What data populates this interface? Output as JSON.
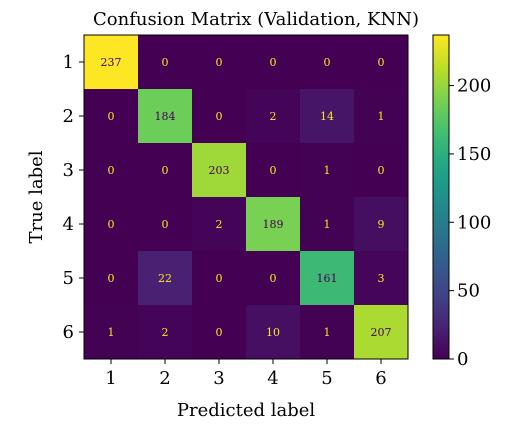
{
  "chart_data": {
    "type": "heatmap",
    "title": "Confusion Matrix (Validation, KNN)",
    "xlabel": "Predicted label",
    "ylabel": "True label",
    "x_categories": [
      "1",
      "2",
      "3",
      "4",
      "5",
      "6"
    ],
    "y_categories": [
      "1",
      "2",
      "3",
      "4",
      "5",
      "6"
    ],
    "values": [
      [
        237,
        0,
        0,
        0,
        0,
        0
      ],
      [
        0,
        184,
        0,
        2,
        14,
        1
      ],
      [
        0,
        0,
        203,
        0,
        1,
        0
      ],
      [
        0,
        0,
        2,
        189,
        1,
        9
      ],
      [
        0,
        22,
        0,
        0,
        161,
        3
      ],
      [
        1,
        2,
        0,
        10,
        1,
        207
      ]
    ],
    "colormap": "viridis",
    "colorbar": {
      "range": [
        0,
        237
      ],
      "ticks": [
        "0",
        "50",
        "100",
        "150",
        "200"
      ]
    },
    "text_colors": {
      "on_dark": "#fde725",
      "on_light": "#440154"
    }
  }
}
